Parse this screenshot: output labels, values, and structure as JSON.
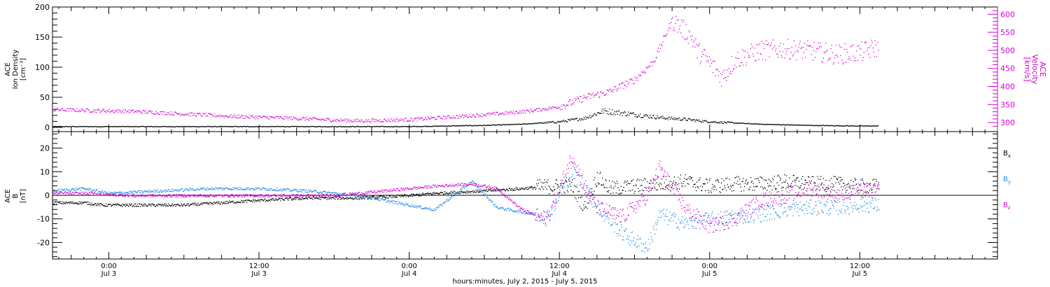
{
  "colors": {
    "black": "#000000",
    "magenta": "#d400d4",
    "blue": "#1e88e5"
  },
  "x_axis": {
    "title": "hours:minutes, July  2, 2015 - July  5, 2015",
    "major_ticks": [
      {
        "h": 24,
        "time": "0:00",
        "date": "Jul 3"
      },
      {
        "h": 36,
        "time": "12:00",
        "date": "Jul 3"
      },
      {
        "h": 48,
        "time": "0:00",
        "date": "Jul 4"
      },
      {
        "h": 60,
        "time": "12:00",
        "date": "Jul 4"
      },
      {
        "h": 72,
        "time": "0:00",
        "date": "Jul 5"
      },
      {
        "h": 84,
        "time": "12:00",
        "date": "Jul 5"
      }
    ]
  },
  "chart_data": [
    {
      "type": "scatter",
      "panel": "top",
      "xlim_hours": [
        19.5,
        95
      ],
      "left_axis": {
        "label_lines": [
          "ACE",
          "Ion Density",
          "[cm⁻³]"
        ],
        "ylim": [
          -7,
          200
        ],
        "ticks": [
          "0",
          "50",
          "100",
          "150",
          "200"
        ],
        "tick_values": [
          0,
          50,
          100,
          150,
          200
        ]
      },
      "right_axis": {
        "label_lines": [
          "ACE",
          "Velocity",
          "[km/s]"
        ],
        "ylim": [
          275,
          620
        ],
        "ticks": [
          "300",
          "350",
          "400",
          "450",
          "500",
          "550",
          "600"
        ],
        "tick_values": [
          300,
          350,
          400,
          450,
          500,
          550,
          600
        ]
      },
      "series": [
        {
          "color": "black",
          "axis": "left",
          "x": [
            19.5,
            24,
            30,
            36,
            42,
            48,
            54,
            57,
            60,
            62,
            63.5,
            66,
            68,
            70,
            72,
            76,
            80,
            84,
            85.5
          ],
          "y": [
            2,
            2,
            2,
            2,
            2,
            2,
            4,
            6,
            10,
            16,
            28,
            22,
            17,
            14,
            10,
            6,
            4,
            3,
            3
          ]
        },
        {
          "color": "magenta",
          "axis": "right",
          "x": [
            19.5,
            22,
            26,
            30,
            34,
            38,
            42,
            44,
            48,
            52,
            56,
            58,
            60,
            62,
            64,
            66,
            67.5,
            69,
            70.5,
            71,
            72,
            73,
            74,
            76,
            78,
            80,
            82,
            84,
            85.5
          ],
          "y": [
            337,
            335,
            332,
            325,
            318,
            314,
            308,
            306,
            309,
            318,
            328,
            335,
            345,
            370,
            387,
            420,
            470,
            585,
            540,
            500,
            465,
            425,
            475,
            500,
            505,
            500,
            490,
            495,
            510
          ]
        }
      ]
    },
    {
      "type": "scatter",
      "panel": "bottom",
      "xlim_hours": [
        19.5,
        95
      ],
      "left_axis": {
        "label_lines": [
          "ACE",
          "B",
          "[nT]"
        ],
        "ylim": [
          -27,
          27
        ],
        "ticks": [
          "-20",
          "-10",
          "0",
          "10",
          "20"
        ],
        "tick_values": [
          -20,
          -10,
          0,
          10,
          20
        ]
      },
      "zero_line": true,
      "legend": [
        {
          "base": "B",
          "sub": "x",
          "color": "black"
        },
        {
          "base": "B",
          "sub": "y",
          "color": "blue"
        },
        {
          "base": "B",
          "sub": "z",
          "color": "magenta"
        }
      ],
      "series": [
        {
          "name": "Bx",
          "color": "black",
          "x": [
            19.5,
            22,
            23.5,
            26,
            30,
            33,
            36,
            40,
            44,
            48,
            50,
            54,
            57,
            59,
            61,
            62,
            63,
            64,
            66,
            68,
            70,
            72,
            74,
            76,
            78,
            80,
            82,
            84,
            85.5
          ],
          "y": [
            -3,
            -3,
            -4,
            -4,
            -4,
            -3,
            -2,
            -1,
            -1,
            0,
            1,
            2,
            3,
            4,
            4,
            -5,
            8,
            3,
            4,
            5,
            6,
            4,
            5,
            5,
            6,
            5,
            5,
            4,
            4
          ]
        },
        {
          "name": "By",
          "color": "blue",
          "x": [
            19.5,
            22,
            24,
            28,
            32,
            36,
            40,
            44,
            46,
            48,
            50,
            53,
            55,
            57,
            59,
            61,
            62,
            63,
            65,
            67,
            68,
            70,
            72,
            74,
            76,
            78,
            80,
            82,
            84,
            85.5
          ],
          "y": [
            2,
            3,
            1,
            2,
            3,
            3,
            2,
            0,
            -2,
            -4,
            -6,
            6,
            -5,
            -7,
            -9,
            10,
            4,
            -5,
            -16,
            -22,
            -8,
            -12,
            -10,
            -9,
            -8,
            -6,
            -5,
            -5,
            -4,
            -4
          ]
        },
        {
          "name": "Bz",
          "color": "magenta",
          "x": [
            19.5,
            22,
            26,
            30,
            34,
            38,
            42,
            44,
            46,
            48,
            50,
            53,
            55,
            57,
            59,
            61,
            62,
            63,
            65,
            67,
            68,
            70,
            72,
            74,
            76,
            78,
            80,
            82,
            84,
            85.5
          ],
          "y": [
            1,
            1,
            0,
            0,
            0,
            0,
            0,
            1,
            2,
            3,
            4,
            5,
            3,
            -6,
            -10,
            17,
            4,
            -5,
            -9,
            0,
            12,
            -5,
            -13,
            -10,
            -2,
            0,
            3,
            1,
            2,
            2
          ]
        }
      ]
    }
  ]
}
